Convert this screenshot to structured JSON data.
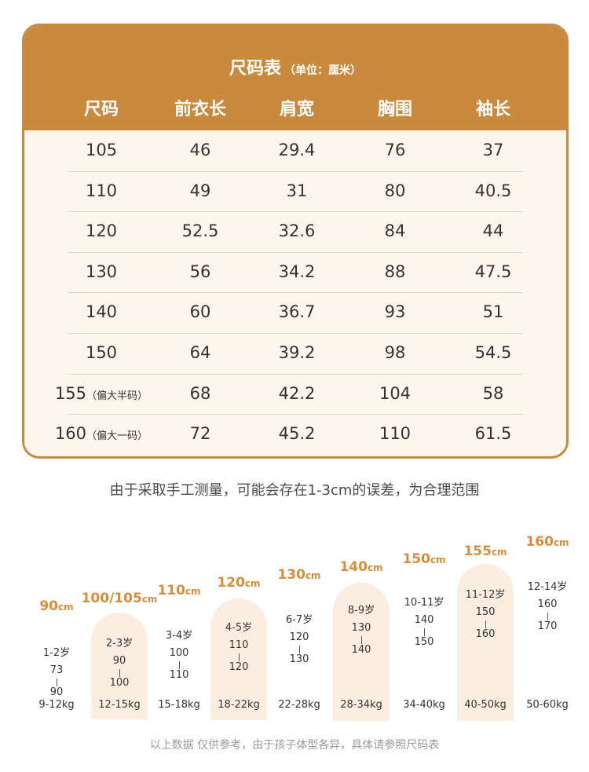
{
  "table": {
    "title": "尺码表",
    "unit": "（单位：厘米）",
    "headers": [
      "尺码",
      "前衣长",
      "肩宽",
      "胸围",
      "袖长"
    ],
    "rows": [
      {
        "size": "105",
        "note": "",
        "length": "46",
        "shoulder": "29.4",
        "chest": "76",
        "sleeve": "37"
      },
      {
        "size": "110",
        "note": "",
        "length": "49",
        "shoulder": "31",
        "chest": "80",
        "sleeve": "40.5"
      },
      {
        "size": "120",
        "note": "",
        "length": "52.5",
        "shoulder": "32.6",
        "chest": "84",
        "sleeve": "44"
      },
      {
        "size": "130",
        "note": "",
        "length": "56",
        "shoulder": "34.2",
        "chest": "88",
        "sleeve": "47.5"
      },
      {
        "size": "140",
        "note": "",
        "length": "60",
        "shoulder": "36.7",
        "chest": "93",
        "sleeve": "51"
      },
      {
        "size": "150",
        "note": "",
        "length": "64",
        "shoulder": "39.2",
        "chest": "98",
        "sleeve": "54.5"
      },
      {
        "size": "155",
        "note": "（偏大半码）",
        "length": "68",
        "shoulder": "42.2",
        "chest": "104",
        "sleeve": "58"
      },
      {
        "size": "160",
        "note": "（偏大一码）",
        "length": "72",
        "shoulder": "45.2",
        "chest": "110",
        "sleeve": "61.5"
      }
    ]
  },
  "caption": "由于采取手工测量，可能会存在1-3cm的误差，为合理范围",
  "size_guide": [
    {
      "size": "90",
      "unit": "cm",
      "age": "1-2岁",
      "h_from": "73",
      "h_to": "90",
      "weight": "9-12kg"
    },
    {
      "size": "100/105",
      "unit": "cm",
      "age": "2-3岁",
      "h_from": "90",
      "h_to": "100",
      "weight": "12-15kg"
    },
    {
      "size": "110",
      "unit": "cm",
      "age": "3-4岁",
      "h_from": "100",
      "h_to": "110",
      "weight": "15-18kg"
    },
    {
      "size": "120",
      "unit": "cm",
      "age": "4-5岁",
      "h_from": "110",
      "h_to": "120",
      "weight": "18-22kg"
    },
    {
      "size": "130",
      "unit": "cm",
      "age": "6-7岁",
      "h_from": "120",
      "h_to": "130",
      "weight": "22-28kg"
    },
    {
      "size": "140",
      "unit": "cm",
      "age": "8-9岁",
      "h_from": "130",
      "h_to": "140",
      "weight": "28-34kg"
    },
    {
      "size": "150",
      "unit": "cm",
      "age": "10-11岁",
      "h_from": "140",
      "h_to": "150",
      "weight": "34-40kg"
    },
    {
      "size": "155",
      "unit": "cm",
      "age": "11-12岁",
      "h_from": "150",
      "h_to": "160",
      "weight": "40-50kg"
    },
    {
      "size": "160",
      "unit": "cm",
      "age": "12-14岁",
      "h_from": "160",
      "h_to": "170",
      "weight": "50-60kg"
    }
  ],
  "footnote": "以上数据 仅供参考，由于孩子体型各异，具体请参照尺码表",
  "colors": {
    "accent": "#c98a3e",
    "size_label": "#d88d3a",
    "arch_bg": "#fbeee0",
    "table_bg": "#fdf6ec"
  }
}
